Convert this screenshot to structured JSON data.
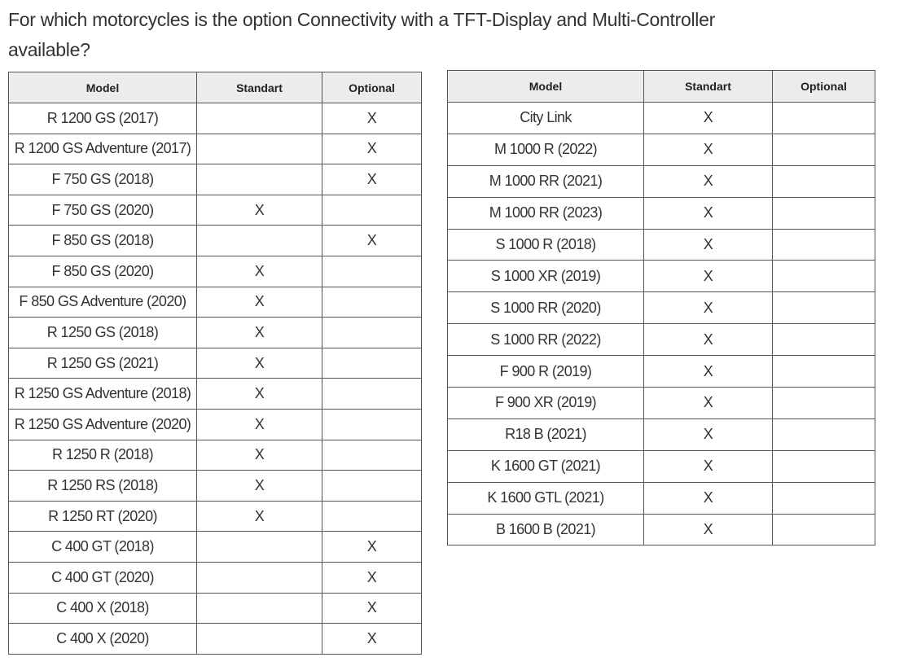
{
  "question": "For which motorcycles is the option Connectivity with a TFT-Display and Multi-Controller available?",
  "tables": [
    {
      "header": [
        "Model",
        "Standart",
        "Optional"
      ],
      "rows": [
        {
          "model": "R 1200 GS (2017)",
          "optional": "X"
        },
        {
          "model": "R 1200 GS Adventure (2017)",
          "optional": "X"
        },
        {
          "model": "F 750 GS (2018)",
          "optional": "X"
        },
        {
          "model": "F 750 GS (2020)",
          "standart": "X"
        },
        {
          "model": "F 850 GS (2018)",
          "optional": "X"
        },
        {
          "model": "F 850 GS (2020)",
          "standart": "X"
        },
        {
          "model": "F 850 GS Adventure (2020)",
          "standart": "X"
        },
        {
          "model": "R 1250 GS (2018)",
          "standart": "X"
        },
        {
          "model": "R 1250 GS (2021)",
          "standart": "X"
        },
        {
          "model": "R 1250 GS Adventure (2018)",
          "standart": "X"
        },
        {
          "model": "R 1250 GS Adventure (2020)",
          "standart": "X"
        },
        {
          "model": "R 1250 R (2018)",
          "standart": "X"
        },
        {
          "model": "R 1250 RS (2018)",
          "standart": "X"
        },
        {
          "model": "R 1250 RT (2020)",
          "standart": "X"
        },
        {
          "model": "C 400 GT (2018)",
          "optional": "X"
        },
        {
          "model": "C 400 GT (2020)",
          "optional": "X"
        },
        {
          "model": "C 400 X (2018)",
          "optional": "X"
        },
        {
          "model": "C 400 X (2020)",
          "optional": "X"
        }
      ]
    },
    {
      "header": [
        "Model",
        "Standart",
        "Optional"
      ],
      "rows": [
        {
          "model": "City Link",
          "standart": "X"
        },
        {
          "model": "M 1000 R (2022)",
          "standart": "X"
        },
        {
          "model": "M 1000 RR (2021)",
          "standart": "X"
        },
        {
          "model": "M 1000 RR (2023)",
          "standart": "X"
        },
        {
          "model": "S 1000 R (2018)",
          "standart": "X"
        },
        {
          "model": "S 1000 XR (2019)",
          "standart": "X"
        },
        {
          "model": "S 1000 RR (2020)",
          "standart": "X"
        },
        {
          "model": "S 1000 RR (2022)",
          "standart": "X"
        },
        {
          "model": "F 900 R (2019)",
          "standart": "X"
        },
        {
          "model": "F 900 XR (2019)",
          "standart": "X"
        },
        {
          "model": "R18 B (2021)",
          "standart": "X"
        },
        {
          "model": "K 1600 GT (2021)",
          "standart": "X"
        },
        {
          "model": "K 1600 GTL (2021)",
          "standart": "X"
        },
        {
          "model": "B 1600 B (2021)",
          "standart": "X"
        }
      ]
    }
  ]
}
